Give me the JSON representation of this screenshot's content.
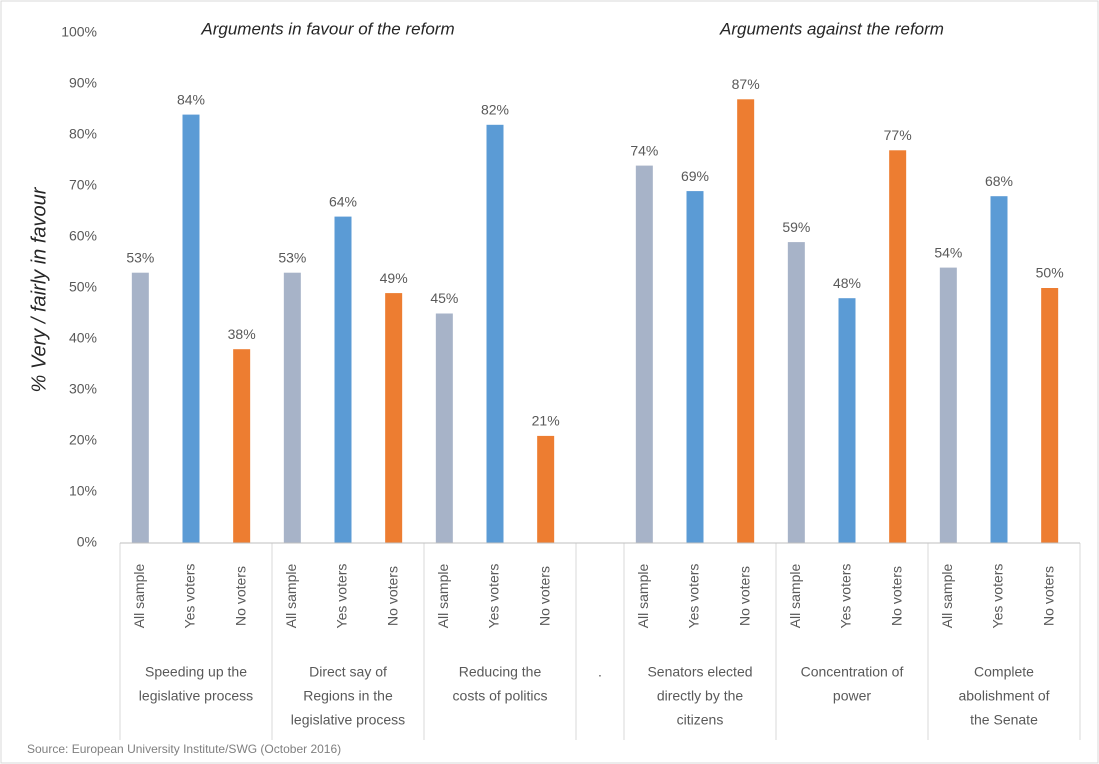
{
  "chart_data": {
    "type": "grouped-bar",
    "annotations": [
      "Arguments in favour of the reform",
      "Arguments against the reform"
    ],
    "y_label": "% Very / fairly in favour",
    "source": "Source: European University Institute/SWG (October 2016)",
    "colors": [
      "#a7b3c8",
      "#5b9bd5",
      "#ed7d31"
    ],
    "ylim": [
      0,
      100
    ],
    "yticks": [
      {
        "value": 0,
        "label": "0%"
      },
      {
        "value": 10,
        "label": "10%"
      },
      {
        "value": 20,
        "label": "20%"
      },
      {
        "value": 30,
        "label": "30%"
      },
      {
        "value": 40,
        "label": "40%"
      },
      {
        "value": 50,
        "label": "50%"
      },
      {
        "value": 60,
        "label": "60%"
      },
      {
        "value": 70,
        "label": "70%"
      },
      {
        "value": 80,
        "label": "80%"
      },
      {
        "value": 90,
        "label": "90%"
      },
      {
        "value": 100,
        "label": "100%"
      }
    ],
    "grid": false,
    "groups": [
      {
        "label": [
          "Speeding up the",
          "legislative process"
        ],
        "categories": [
          "All sample",
          "Yes voters",
          "No voters"
        ],
        "values": [
          53,
          84,
          38
        ],
        "value_labels": [
          "53%",
          "84%",
          "38%"
        ]
      },
      {
        "label": [
          "Direct say of",
          "Regions in the",
          "legislative process"
        ],
        "categories": [
          "All sample",
          "Yes voters",
          "No voters"
        ],
        "values": [
          53,
          64,
          49
        ],
        "value_labels": [
          "53%",
          "64%",
          "49%"
        ]
      },
      {
        "label": [
          "Reducing the",
          "costs of politics"
        ],
        "categories": [
          "All sample",
          "Yes voters",
          "No voters"
        ],
        "values": [
          45,
          82,
          21
        ],
        "value_labels": [
          "45%",
          "82%",
          "21%"
        ]
      },
      {
        "label": [
          "."
        ]
      },
      {
        "label": [
          "Senators elected",
          "directly by the",
          "citizens"
        ],
        "categories": [
          "All sample",
          "Yes voters",
          "No voters"
        ],
        "values": [
          74,
          69,
          87
        ],
        "value_labels": [
          "74%",
          "69%",
          "87%"
        ]
      },
      {
        "label": [
          "Concentration of",
          "power"
        ],
        "categories": [
          "All sample",
          "Yes voters",
          "No voters"
        ],
        "values": [
          59,
          48,
          77
        ],
        "value_labels": [
          "59%",
          "48%",
          "77%"
        ]
      },
      {
        "label": [
          "Complete",
          "abolishment of",
          "the Senate"
        ],
        "categories": [
          "All sample",
          "Yes voters",
          "No voters"
        ],
        "values": [
          54,
          68,
          50
        ],
        "value_labels": [
          "54%",
          "68%",
          "50%"
        ]
      }
    ]
  }
}
